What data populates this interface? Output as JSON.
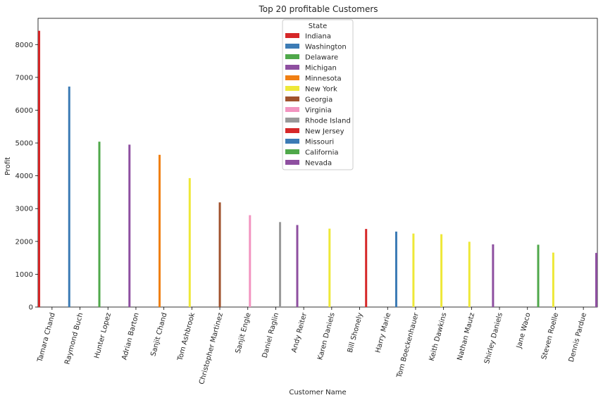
{
  "chart_data": {
    "type": "bar",
    "title": "Top 20 profitable Customers",
    "xlabel": "Customer Name",
    "ylabel": "Profit",
    "ylim": [
      0,
      8800
    ],
    "yticks": [
      0,
      1000,
      2000,
      3000,
      4000,
      5000,
      6000,
      7000,
      8000
    ],
    "grid": false,
    "legend": {
      "title": "State",
      "placement": "top-center",
      "entries": [
        {
          "name": "Indiana",
          "color": "#d62728"
        },
        {
          "name": "Washington",
          "color": "#3c7bb5"
        },
        {
          "name": "Delaware",
          "color": "#4fa84a"
        },
        {
          "name": "Michigan",
          "color": "#8e4fa0"
        },
        {
          "name": "Minnesota",
          "color": "#f07f12"
        },
        {
          "name": "New York",
          "color": "#eee838"
        },
        {
          "name": "Georgia",
          "color": "#a0522d"
        },
        {
          "name": "Virginia",
          "color": "#f294c0"
        },
        {
          "name": "Rhode Island",
          "color": "#999999"
        },
        {
          "name": "New Jersey",
          "color": "#d62728"
        },
        {
          "name": "Missouri",
          "color": "#3c7bb5"
        },
        {
          "name": "California",
          "color": "#4fa84a"
        },
        {
          "name": "Nevada",
          "color": "#8e4fa0"
        }
      ]
    },
    "categories": [
      "Tamara Chand",
      "Raymond Buch",
      "Hunter Lopez",
      "Adrian Barton",
      "Sanjit Chand",
      "Tom Ashbrook",
      "Christopher Martinez",
      "Sanjit Engle",
      "Daniel Raglin",
      "Andy Reiter",
      "Karen Daniels",
      "Bill Shonely",
      "Harry Marie",
      "Tom Boeckenhauer",
      "Keith Dawkins",
      "Nathan Mautz",
      "Shirley Daniels",
      "Jane Waco",
      "Steven Roelle",
      "Dennis Pardue"
    ],
    "bars": [
      {
        "category": "Tamara Chand",
        "state": "Indiana",
        "value": 8420
      },
      {
        "category": "Raymond Buch",
        "state": "Washington",
        "value": 6720
      },
      {
        "category": "Hunter Lopez",
        "state": "Delaware",
        "value": 5040
      },
      {
        "category": "Adrian Barton",
        "state": "Michigan",
        "value": 4950
      },
      {
        "category": "Sanjit Chand",
        "state": "Minnesota",
        "value": 4640
      },
      {
        "category": "Tom Ashbrook",
        "state": "New York",
        "value": 3930
      },
      {
        "category": "Christopher Martinez",
        "state": "Georgia",
        "value": 3190
      },
      {
        "category": "Sanjit Engle",
        "state": "Virginia",
        "value": 2800
      },
      {
        "category": "Daniel Raglin",
        "state": "Rhode Island",
        "value": 2590
      },
      {
        "category": "Andy Reiter",
        "state": "Michigan",
        "value": 2500
      },
      {
        "category": "Karen Daniels",
        "state": "New York",
        "value": 2390
      },
      {
        "category": "Bill Shonely",
        "state": "New Jersey",
        "value": 2380
      },
      {
        "category": "Harry Marie",
        "state": "Missouri",
        "value": 2300
      },
      {
        "category": "Tom Boeckenhauer",
        "state": "New York",
        "value": 2240
      },
      {
        "category": "Keith Dawkins",
        "state": "New York",
        "value": 2220
      },
      {
        "category": "Nathan Mautz",
        "state": "New York",
        "value": 1990
      },
      {
        "category": "Shirley Daniels",
        "state": "Michigan",
        "value": 1910
      },
      {
        "category": "Jane Waco",
        "state": "California",
        "value": 1900
      },
      {
        "category": "Steven Roelle",
        "state": "New York",
        "value": 1660
      },
      {
        "category": "Dennis Pardue",
        "state": "Nevada",
        "value": 1650
      }
    ]
  }
}
